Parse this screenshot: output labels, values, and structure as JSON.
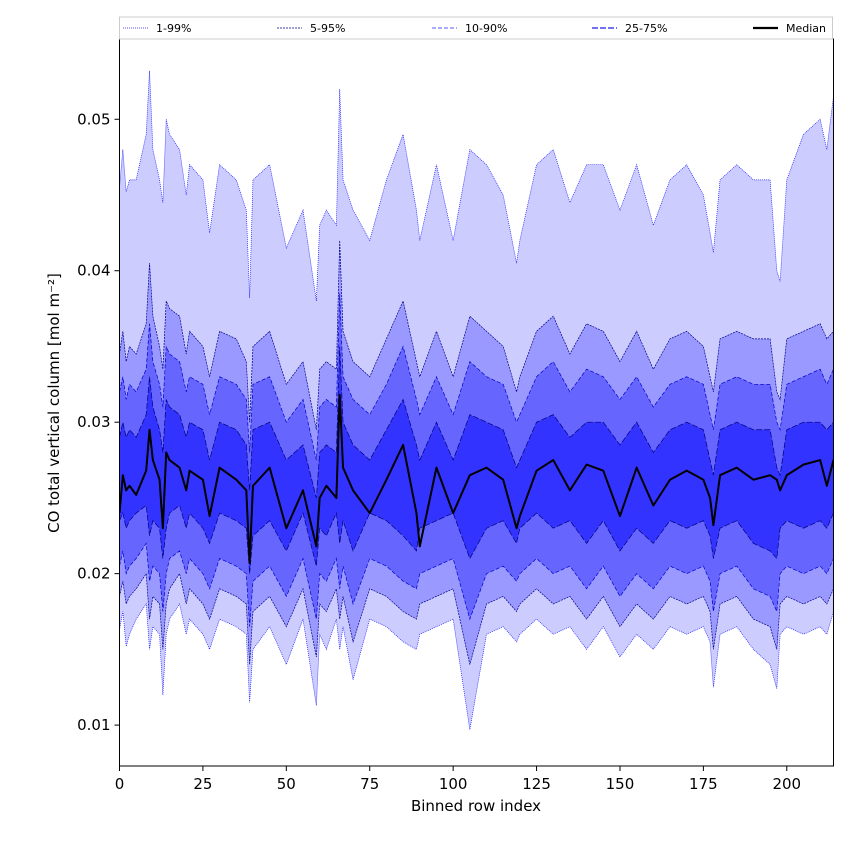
{
  "chart_data": {
    "type": "area",
    "title": "",
    "xlabel": "Binned row index",
    "ylabel": "CO total vertical column [mol m⁻²]",
    "xlim": [
      0,
      214
    ],
    "ylim": [
      0.0073,
      0.0553
    ],
    "xticks": [
      0,
      25,
      50,
      75,
      100,
      125,
      150,
      175,
      200
    ],
    "yticks": [
      0.01,
      0.02,
      0.03,
      0.04,
      0.05
    ],
    "ytick_labels": [
      "0.01",
      "0.02",
      "0.03",
      "0.04",
      "0.05"
    ],
    "grid": false,
    "legend_position": "top, horizontal above plot",
    "n_points": 215,
    "x": [
      0,
      1,
      2,
      3,
      5,
      8,
      9,
      10,
      12,
      13,
      14,
      15,
      18,
      20,
      21,
      25,
      27,
      30,
      35,
      38,
      39,
      40,
      45,
      50,
      55,
      59,
      60,
      62,
      65,
      66,
      67,
      70,
      75,
      80,
      85,
      89,
      90,
      95,
      100,
      105,
      110,
      115,
      119,
      120,
      125,
      130,
      135,
      140,
      145,
      150,
      155,
      160,
      165,
      170,
      175,
      177,
      178,
      180,
      185,
      190,
      195,
      197,
      198,
      200,
      205,
      210,
      212,
      214
    ],
    "series": [
      {
        "name": "1-99%",
        "lower": [
          0.0163,
          0.0175,
          0.0152,
          0.016,
          0.017,
          0.018,
          0.015,
          0.0165,
          0.016,
          0.012,
          0.016,
          0.017,
          0.018,
          0.016,
          0.017,
          0.016,
          0.015,
          0.017,
          0.0165,
          0.016,
          0.0115,
          0.015,
          0.0165,
          0.014,
          0.017,
          0.0113,
          0.016,
          0.015,
          0.017,
          0.015,
          0.0165,
          0.013,
          0.017,
          0.0165,
          0.0155,
          0.015,
          0.016,
          0.0165,
          0.017,
          0.0097,
          0.016,
          0.0165,
          0.0155,
          0.016,
          0.017,
          0.016,
          0.0165,
          0.015,
          0.0165,
          0.0145,
          0.016,
          0.015,
          0.0165,
          0.016,
          0.0165,
          0.0155,
          0.0125,
          0.016,
          0.0165,
          0.015,
          0.014,
          0.0124,
          0.016,
          0.0165,
          0.016,
          0.0165,
          0.016,
          0.0175
        ],
        "upper": [
          0.0455,
          0.048,
          0.0452,
          0.046,
          0.046,
          0.049,
          0.0532,
          0.048,
          0.046,
          0.0445,
          0.05,
          0.049,
          0.048,
          0.045,
          0.047,
          0.046,
          0.0425,
          0.047,
          0.046,
          0.044,
          0.0382,
          0.046,
          0.047,
          0.0415,
          0.044,
          0.038,
          0.043,
          0.044,
          0.043,
          0.052,
          0.046,
          0.044,
          0.042,
          0.046,
          0.049,
          0.044,
          0.042,
          0.047,
          0.042,
          0.048,
          0.047,
          0.045,
          0.0405,
          0.042,
          0.047,
          0.048,
          0.0445,
          0.047,
          0.047,
          0.044,
          0.047,
          0.043,
          0.046,
          0.047,
          0.045,
          0.0425,
          0.0412,
          0.046,
          0.047,
          0.046,
          0.046,
          0.04,
          0.0393,
          0.046,
          0.049,
          0.05,
          0.048,
          0.0515
        ]
      },
      {
        "name": "5-95%",
        "lower": [
          0.0185,
          0.0195,
          0.018,
          0.0185,
          0.019,
          0.02,
          0.017,
          0.0185,
          0.018,
          0.015,
          0.018,
          0.019,
          0.02,
          0.018,
          0.019,
          0.018,
          0.017,
          0.019,
          0.0185,
          0.018,
          0.014,
          0.0175,
          0.0185,
          0.0165,
          0.019,
          0.0145,
          0.018,
          0.0175,
          0.019,
          0.017,
          0.0185,
          0.0155,
          0.019,
          0.0185,
          0.0175,
          0.017,
          0.018,
          0.0185,
          0.019,
          0.014,
          0.018,
          0.0185,
          0.0175,
          0.018,
          0.019,
          0.018,
          0.0185,
          0.017,
          0.0185,
          0.0165,
          0.018,
          0.017,
          0.0185,
          0.018,
          0.0185,
          0.0175,
          0.015,
          0.018,
          0.0185,
          0.017,
          0.0165,
          0.015,
          0.018,
          0.0185,
          0.018,
          0.0185,
          0.018,
          0.019
        ],
        "upper": [
          0.0345,
          0.036,
          0.034,
          0.035,
          0.0345,
          0.0365,
          0.0405,
          0.037,
          0.035,
          0.0335,
          0.038,
          0.0375,
          0.037,
          0.0345,
          0.036,
          0.035,
          0.033,
          0.036,
          0.0355,
          0.034,
          0.03,
          0.035,
          0.036,
          0.0325,
          0.034,
          0.0295,
          0.0335,
          0.034,
          0.0335,
          0.042,
          0.036,
          0.034,
          0.033,
          0.0355,
          0.038,
          0.034,
          0.033,
          0.036,
          0.033,
          0.037,
          0.036,
          0.035,
          0.032,
          0.033,
          0.036,
          0.037,
          0.0345,
          0.0365,
          0.036,
          0.034,
          0.036,
          0.0335,
          0.0355,
          0.036,
          0.035,
          0.033,
          0.032,
          0.0355,
          0.036,
          0.0355,
          0.0355,
          0.032,
          0.0315,
          0.0355,
          0.036,
          0.0365,
          0.0355,
          0.036
        ]
      },
      {
        "name": "10-90%",
        "lower": [
          0.0205,
          0.0215,
          0.02,
          0.0205,
          0.021,
          0.022,
          0.0195,
          0.0205,
          0.02,
          0.0175,
          0.02,
          0.021,
          0.0215,
          0.02,
          0.021,
          0.02,
          0.019,
          0.021,
          0.0205,
          0.02,
          0.0165,
          0.0195,
          0.0205,
          0.0185,
          0.021,
          0.017,
          0.02,
          0.0195,
          0.021,
          0.019,
          0.0205,
          0.018,
          0.021,
          0.0205,
          0.0195,
          0.019,
          0.02,
          0.0205,
          0.021,
          0.017,
          0.02,
          0.0205,
          0.0195,
          0.02,
          0.021,
          0.02,
          0.0205,
          0.019,
          0.0205,
          0.0185,
          0.02,
          0.019,
          0.0205,
          0.02,
          0.0205,
          0.0195,
          0.0175,
          0.02,
          0.0205,
          0.019,
          0.0185,
          0.0175,
          0.02,
          0.0205,
          0.02,
          0.0205,
          0.02,
          0.021
        ],
        "upper": [
          0.032,
          0.033,
          0.0315,
          0.0325,
          0.032,
          0.0335,
          0.0365,
          0.034,
          0.0325,
          0.031,
          0.035,
          0.0345,
          0.034,
          0.032,
          0.033,
          0.0325,
          0.0305,
          0.033,
          0.0325,
          0.0315,
          0.028,
          0.0325,
          0.033,
          0.03,
          0.0315,
          0.0275,
          0.031,
          0.0315,
          0.031,
          0.0385,
          0.033,
          0.0315,
          0.0305,
          0.0325,
          0.035,
          0.0315,
          0.0305,
          0.033,
          0.0305,
          0.034,
          0.033,
          0.0325,
          0.03,
          0.0305,
          0.033,
          0.034,
          0.032,
          0.0335,
          0.033,
          0.0315,
          0.033,
          0.031,
          0.0325,
          0.033,
          0.0325,
          0.0305,
          0.0295,
          0.0325,
          0.033,
          0.0325,
          0.0325,
          0.03,
          0.0295,
          0.0325,
          0.033,
          0.0335,
          0.0325,
          0.0335
        ]
      },
      {
        "name": "25-75%",
        "lower": [
          0.0235,
          0.024,
          0.023,
          0.0235,
          0.024,
          0.0245,
          0.0225,
          0.0235,
          0.023,
          0.021,
          0.023,
          0.024,
          0.0245,
          0.023,
          0.024,
          0.023,
          0.022,
          0.024,
          0.0235,
          0.023,
          0.02,
          0.0225,
          0.0235,
          0.0215,
          0.024,
          0.0205,
          0.023,
          0.0225,
          0.024,
          0.022,
          0.0235,
          0.0215,
          0.024,
          0.0235,
          0.0225,
          0.0215,
          0.023,
          0.0235,
          0.024,
          0.021,
          0.023,
          0.0235,
          0.022,
          0.023,
          0.024,
          0.023,
          0.0235,
          0.022,
          0.0235,
          0.0215,
          0.023,
          0.022,
          0.0235,
          0.023,
          0.0235,
          0.0225,
          0.021,
          0.023,
          0.0235,
          0.022,
          0.0215,
          0.021,
          0.023,
          0.0235,
          0.023,
          0.0235,
          0.023,
          0.024
        ],
        "upper": [
          0.029,
          0.03,
          0.029,
          0.0295,
          0.029,
          0.0305,
          0.033,
          0.031,
          0.0295,
          0.028,
          0.0315,
          0.031,
          0.0305,
          0.029,
          0.03,
          0.0295,
          0.0275,
          0.03,
          0.0295,
          0.0285,
          0.0255,
          0.0295,
          0.03,
          0.0275,
          0.0285,
          0.025,
          0.028,
          0.0285,
          0.028,
          0.035,
          0.03,
          0.0285,
          0.0275,
          0.0295,
          0.0315,
          0.0285,
          0.0275,
          0.03,
          0.0275,
          0.0305,
          0.03,
          0.0295,
          0.027,
          0.0275,
          0.03,
          0.0305,
          0.029,
          0.03,
          0.03,
          0.0285,
          0.03,
          0.028,
          0.0295,
          0.03,
          0.0295,
          0.0275,
          0.0265,
          0.0295,
          0.03,
          0.0295,
          0.0295,
          0.027,
          0.0265,
          0.0295,
          0.03,
          0.03,
          0.0295,
          0.03
        ]
      },
      {
        "name": "Median",
        "values": [
          0.024,
          0.0265,
          0.0255,
          0.0258,
          0.0252,
          0.0268,
          0.0295,
          0.0275,
          0.0262,
          0.023,
          0.028,
          0.0275,
          0.027,
          0.0255,
          0.0268,
          0.0262,
          0.0238,
          0.027,
          0.0262,
          0.0255,
          0.0207,
          0.0258,
          0.027,
          0.023,
          0.0255,
          0.0218,
          0.025,
          0.0258,
          0.025,
          0.0318,
          0.027,
          0.0255,
          0.024,
          0.0262,
          0.0285,
          0.024,
          0.0218,
          0.027,
          0.024,
          0.0265,
          0.027,
          0.0262,
          0.023,
          0.0238,
          0.0268,
          0.0275,
          0.0255,
          0.0272,
          0.0268,
          0.0238,
          0.027,
          0.0245,
          0.0262,
          0.0268,
          0.0262,
          0.025,
          0.0232,
          0.0265,
          0.027,
          0.0262,
          0.0265,
          0.0262,
          0.0255,
          0.0265,
          0.0272,
          0.0275,
          0.0258,
          0.0275
        ]
      }
    ],
    "colors": {
      "band_1_99": "#ccccff",
      "band_5_95": "#9999ff",
      "band_10_90": "#6666ff",
      "band_25_75": "#3333ff",
      "median": "#000000",
      "edge_1_99": "#1a1aff",
      "edge_5_95": "#00008b",
      "edge_10_90": "#0000cd",
      "edge_25_75": "#00007a"
    }
  }
}
